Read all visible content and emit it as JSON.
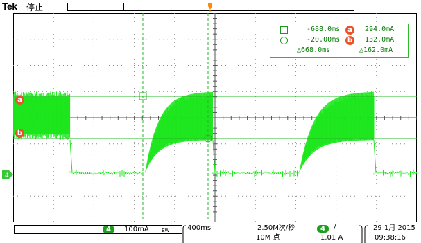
{
  "header": {
    "brand": "Tek",
    "run_state": "停止",
    "trigger_marker": "T"
  },
  "cursor_readout": {
    "cursor1_time": "-688.0ms",
    "cursor2_time": "-20.00ms",
    "delta_time": "△668.0ms",
    "cursor_a_label": "a",
    "cursor_a_value": "294.0mA",
    "cursor_b_label": "b",
    "cursor_b_value": "132.0mA",
    "delta_value": "△162.0mA"
  },
  "screen_markers": {
    "a": "a",
    "b": "b",
    "channel_ground": "4"
  },
  "bottom": {
    "channel_number": "4",
    "channel_scale": "100mA",
    "bandwidth_icon": "BW",
    "timebase": "400ms",
    "sample_rate": "2.50M次/秒",
    "record_length": "10M 点",
    "trigger_channel": "4",
    "trigger_slope": "/",
    "trigger_level": "1.01 A",
    "date": "29 1月 2015",
    "time": "09:38:16"
  },
  "colors": {
    "trace": "#19e619",
    "grid": "#8a8a8a",
    "cursor": "#22b822",
    "badge": "#e8542a",
    "trigger": "#ff8c00"
  },
  "icons": {
    "readout_cursor1": "square-marker-icon",
    "readout_cursor2": "circle-marker-icon",
    "ground_marker": "ground-arrow-icon"
  }
}
